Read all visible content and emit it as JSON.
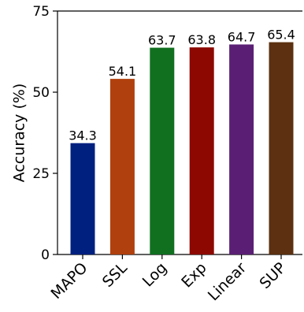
{
  "chart_data": {
    "type": "bar",
    "categories": [
      "MAPO",
      "SSL",
      "Log",
      "Exp",
      "Linear",
      "SUP"
    ],
    "values": [
      34.3,
      54.1,
      63.7,
      63.8,
      64.7,
      65.4
    ],
    "data_labels": [
      "34.3",
      "54.1",
      "63.7",
      "63.8",
      "64.7",
      "65.4"
    ],
    "colors": [
      "#002080",
      "#b0400d",
      "#117020",
      "#8c0800",
      "#5a1f75",
      "#5c3010"
    ],
    "title": "",
    "xlabel": "",
    "ylabel": "Accuracy (%)",
    "ylim": [
      0,
      75
    ],
    "yticks": [
      0,
      25,
      50,
      75
    ],
    "ytick_labels": [
      "0",
      "25",
      "50",
      "75"
    ],
    "grid": false,
    "legend": null
  }
}
